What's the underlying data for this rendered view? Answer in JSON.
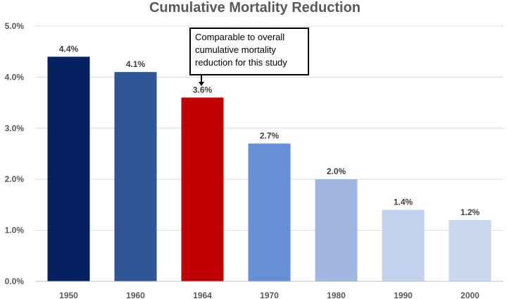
{
  "chart_data": {
    "type": "bar",
    "title": "Cumulative Mortality Reduction",
    "categories": [
      "1950",
      "1960",
      "1964",
      "1970",
      "1980",
      "1990",
      "2000"
    ],
    "values": [
      4.4,
      4.1,
      3.6,
      2.7,
      2.0,
      1.4,
      1.2
    ],
    "value_labels": [
      "4.4%",
      "4.1%",
      "3.6%",
      "2.7%",
      "2.0%",
      "1.4%",
      "1.2%"
    ],
    "bar_colors": [
      "#05215f",
      "#2f5597",
      "#c00000",
      "#668fd4",
      "#a1b7e0",
      "#c2d2ee",
      "#c9d7ef"
    ],
    "ylim": [
      0,
      5
    ],
    "yticks": [
      "0.0%",
      "1.0%",
      "2.0%",
      "3.0%",
      "4.0%",
      "5.0%"
    ],
    "ytick_values": [
      0,
      1,
      2,
      3,
      4,
      5
    ],
    "grid": true,
    "xlabel": "",
    "ylabel": "",
    "annotation": {
      "lines": [
        "Comparable to overall",
        "cumulative mortality",
        "reduction for this study"
      ],
      "target_category": "1964"
    }
  }
}
